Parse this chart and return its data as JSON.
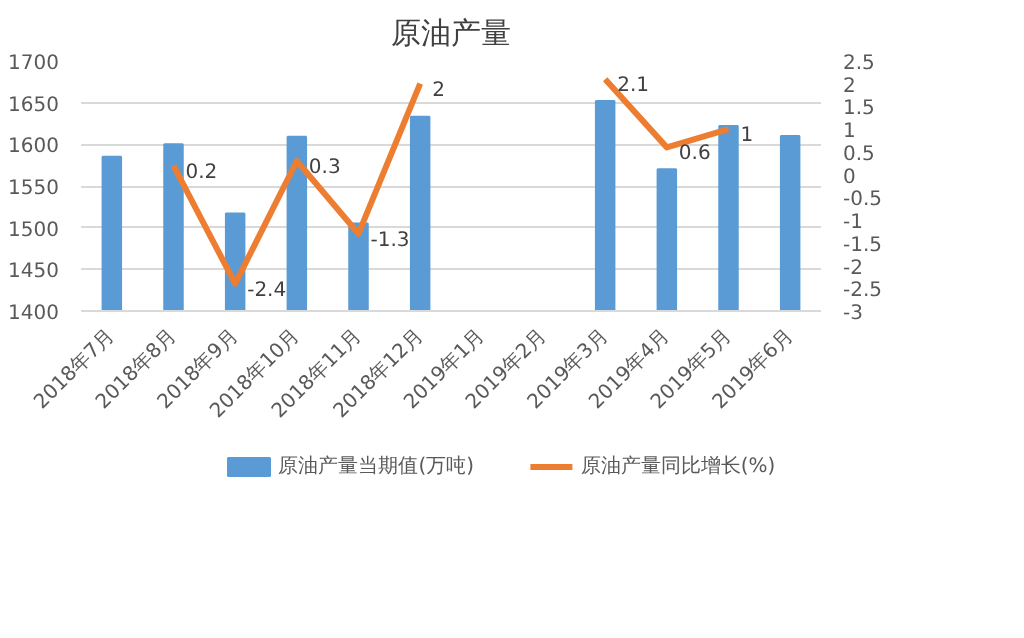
{
  "chart_data": {
    "type": "bar",
    "title": "原油产量",
    "categories": [
      "2018年7月",
      "2018年8月",
      "2018年9月",
      "2018年10月",
      "2018年11月",
      "2018年12月",
      "2019年1月",
      "2019年2月",
      "2019年3月",
      "2019年4月",
      "2019年5月",
      "2019年6月"
    ],
    "series": [
      {
        "name": "原油产量当期值(万吨)",
        "color": "#5b9bd5",
        "values": [
          1585,
          1600,
          1517,
          1609,
          1505,
          1633,
          null,
          null,
          1652,
          1570,
          1622,
          1610
        ]
      },
      {
        "name": "原油产量同比增长(%)",
        "type": "line",
        "axis": "y2",
        "color": "#ed7d31",
        "values": [
          null,
          0.2,
          -2.4,
          0.3,
          -1.3,
          2,
          null,
          null,
          2.1,
          0.6,
          1,
          null
        ],
        "value_labels": [
          null,
          "0.2",
          "-2.4",
          "0.3",
          "-1.3",
          "2",
          null,
          null,
          "2.1",
          "0.6",
          "1",
          null
        ]
      }
    ],
    "ylim": [
      1400,
      1700
    ],
    "yticks": [
      1400,
      1450,
      1500,
      1550,
      1600,
      1650,
      1700
    ],
    "y2lim": [
      -3,
      2.5
    ],
    "y2ticks": [
      -3,
      -2.5,
      -2,
      -1.5,
      -1,
      -0.5,
      0,
      0.5,
      1,
      1.5,
      2,
      2.5
    ],
    "grid": "y",
    "legend": "bottom",
    "marker": "none",
    "line_style": "solid"
  }
}
